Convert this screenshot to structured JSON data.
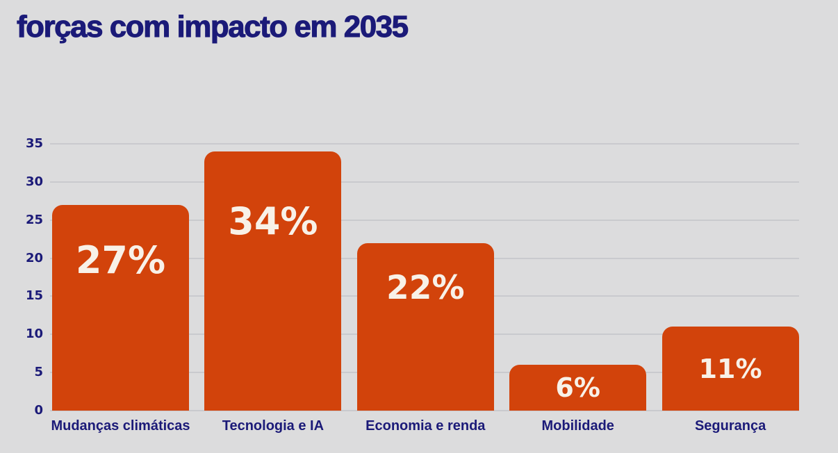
{
  "page": {
    "background_color": "#dcdcdd"
  },
  "header": {
    "title": "forças com impacto em 2035",
    "title_color": "#1b1a78"
  },
  "chart_data": {
    "type": "bar",
    "title": "forças com impacto em 2035",
    "categories": [
      "Mudanças climáticas",
      "Tecnologia e IA",
      "Economia e renda",
      "Mobilidade",
      "Segurança"
    ],
    "values": [
      27,
      34,
      22,
      6,
      11
    ],
    "value_labels": [
      "27%",
      "34%",
      "22%",
      "6%",
      "11%"
    ],
    "xlabel": "",
    "ylabel": "",
    "ylim": [
      0,
      35
    ],
    "yticks": [
      0,
      5,
      10,
      15,
      20,
      25,
      30,
      35
    ],
    "grid": true,
    "legend": false,
    "legend_position": "none",
    "bar_color": "#d2430b",
    "value_label_color": "#f8f1e8",
    "axis_label_color": "#1b1a78",
    "gridline_color": "#c9cace"
  }
}
